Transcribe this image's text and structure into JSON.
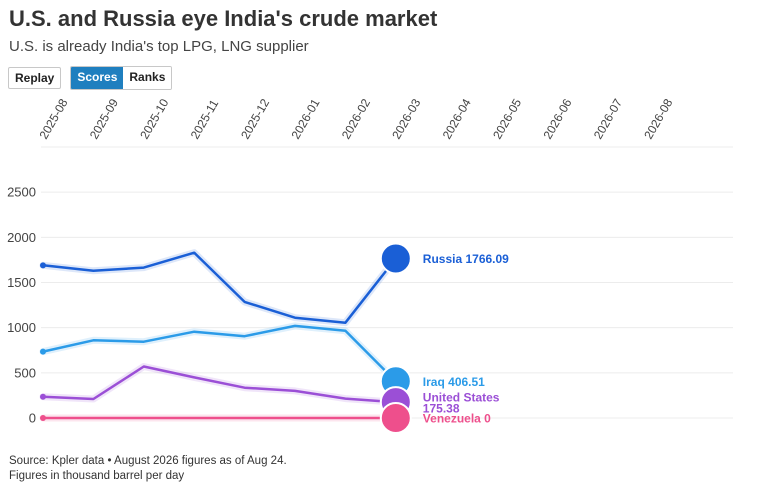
{
  "header": {
    "title": "U.S. and Russia eye India's crude market",
    "subtitle": "U.S. is already India's top LPG, LNG supplier"
  },
  "controls": {
    "replay_label": "Replay",
    "scores_label": "Scores",
    "ranks_label": "Ranks",
    "active": "Scores"
  },
  "footer": {
    "source": "Source: Kpler data • August 2026 figures as of Aug 24.",
    "units": "Figures in thousand barrel per day"
  },
  "chart_data": {
    "type": "line",
    "x": [
      "2025-08",
      "2025-09",
      "2025-10",
      "2025-11",
      "2025-12",
      "2026-01",
      "2026-02",
      "2026-03",
      "2026-04",
      "2026-05",
      "2026-06",
      "2026-07",
      "2026-08"
    ],
    "ylim": [
      0,
      3000
    ],
    "yticks": [
      0,
      500,
      1000,
      1500,
      2000,
      2500
    ],
    "grid": true,
    "series": [
      {
        "name": "Russia",
        "label": "Russia 1766.09",
        "color": "#1a5fd6",
        "values": [
          1690,
          1630,
          1665,
          1830,
          1285,
          1110,
          1055,
          1766.09,
          null,
          null,
          null,
          null,
          null
        ]
      },
      {
        "name": "Iraq",
        "label": "Iraq 406.51",
        "color": "#2b9be8",
        "values": [
          735,
          860,
          845,
          955,
          905,
          1020,
          965,
          406.51,
          null,
          null,
          null,
          null,
          null
        ]
      },
      {
        "name": "United States",
        "label": "United States 175.38",
        "color": "#9b4fd6",
        "values": [
          235,
          210,
          570,
          450,
          335,
          300,
          215,
          175.38,
          null,
          null,
          null,
          null,
          null
        ]
      },
      {
        "name": "Venezuela",
        "label": "Venezuela 0",
        "color": "#ee4f8c",
        "values": [
          0,
          0,
          0,
          0,
          0,
          0,
          0,
          0,
          null,
          null,
          null,
          null,
          null
        ]
      }
    ]
  }
}
